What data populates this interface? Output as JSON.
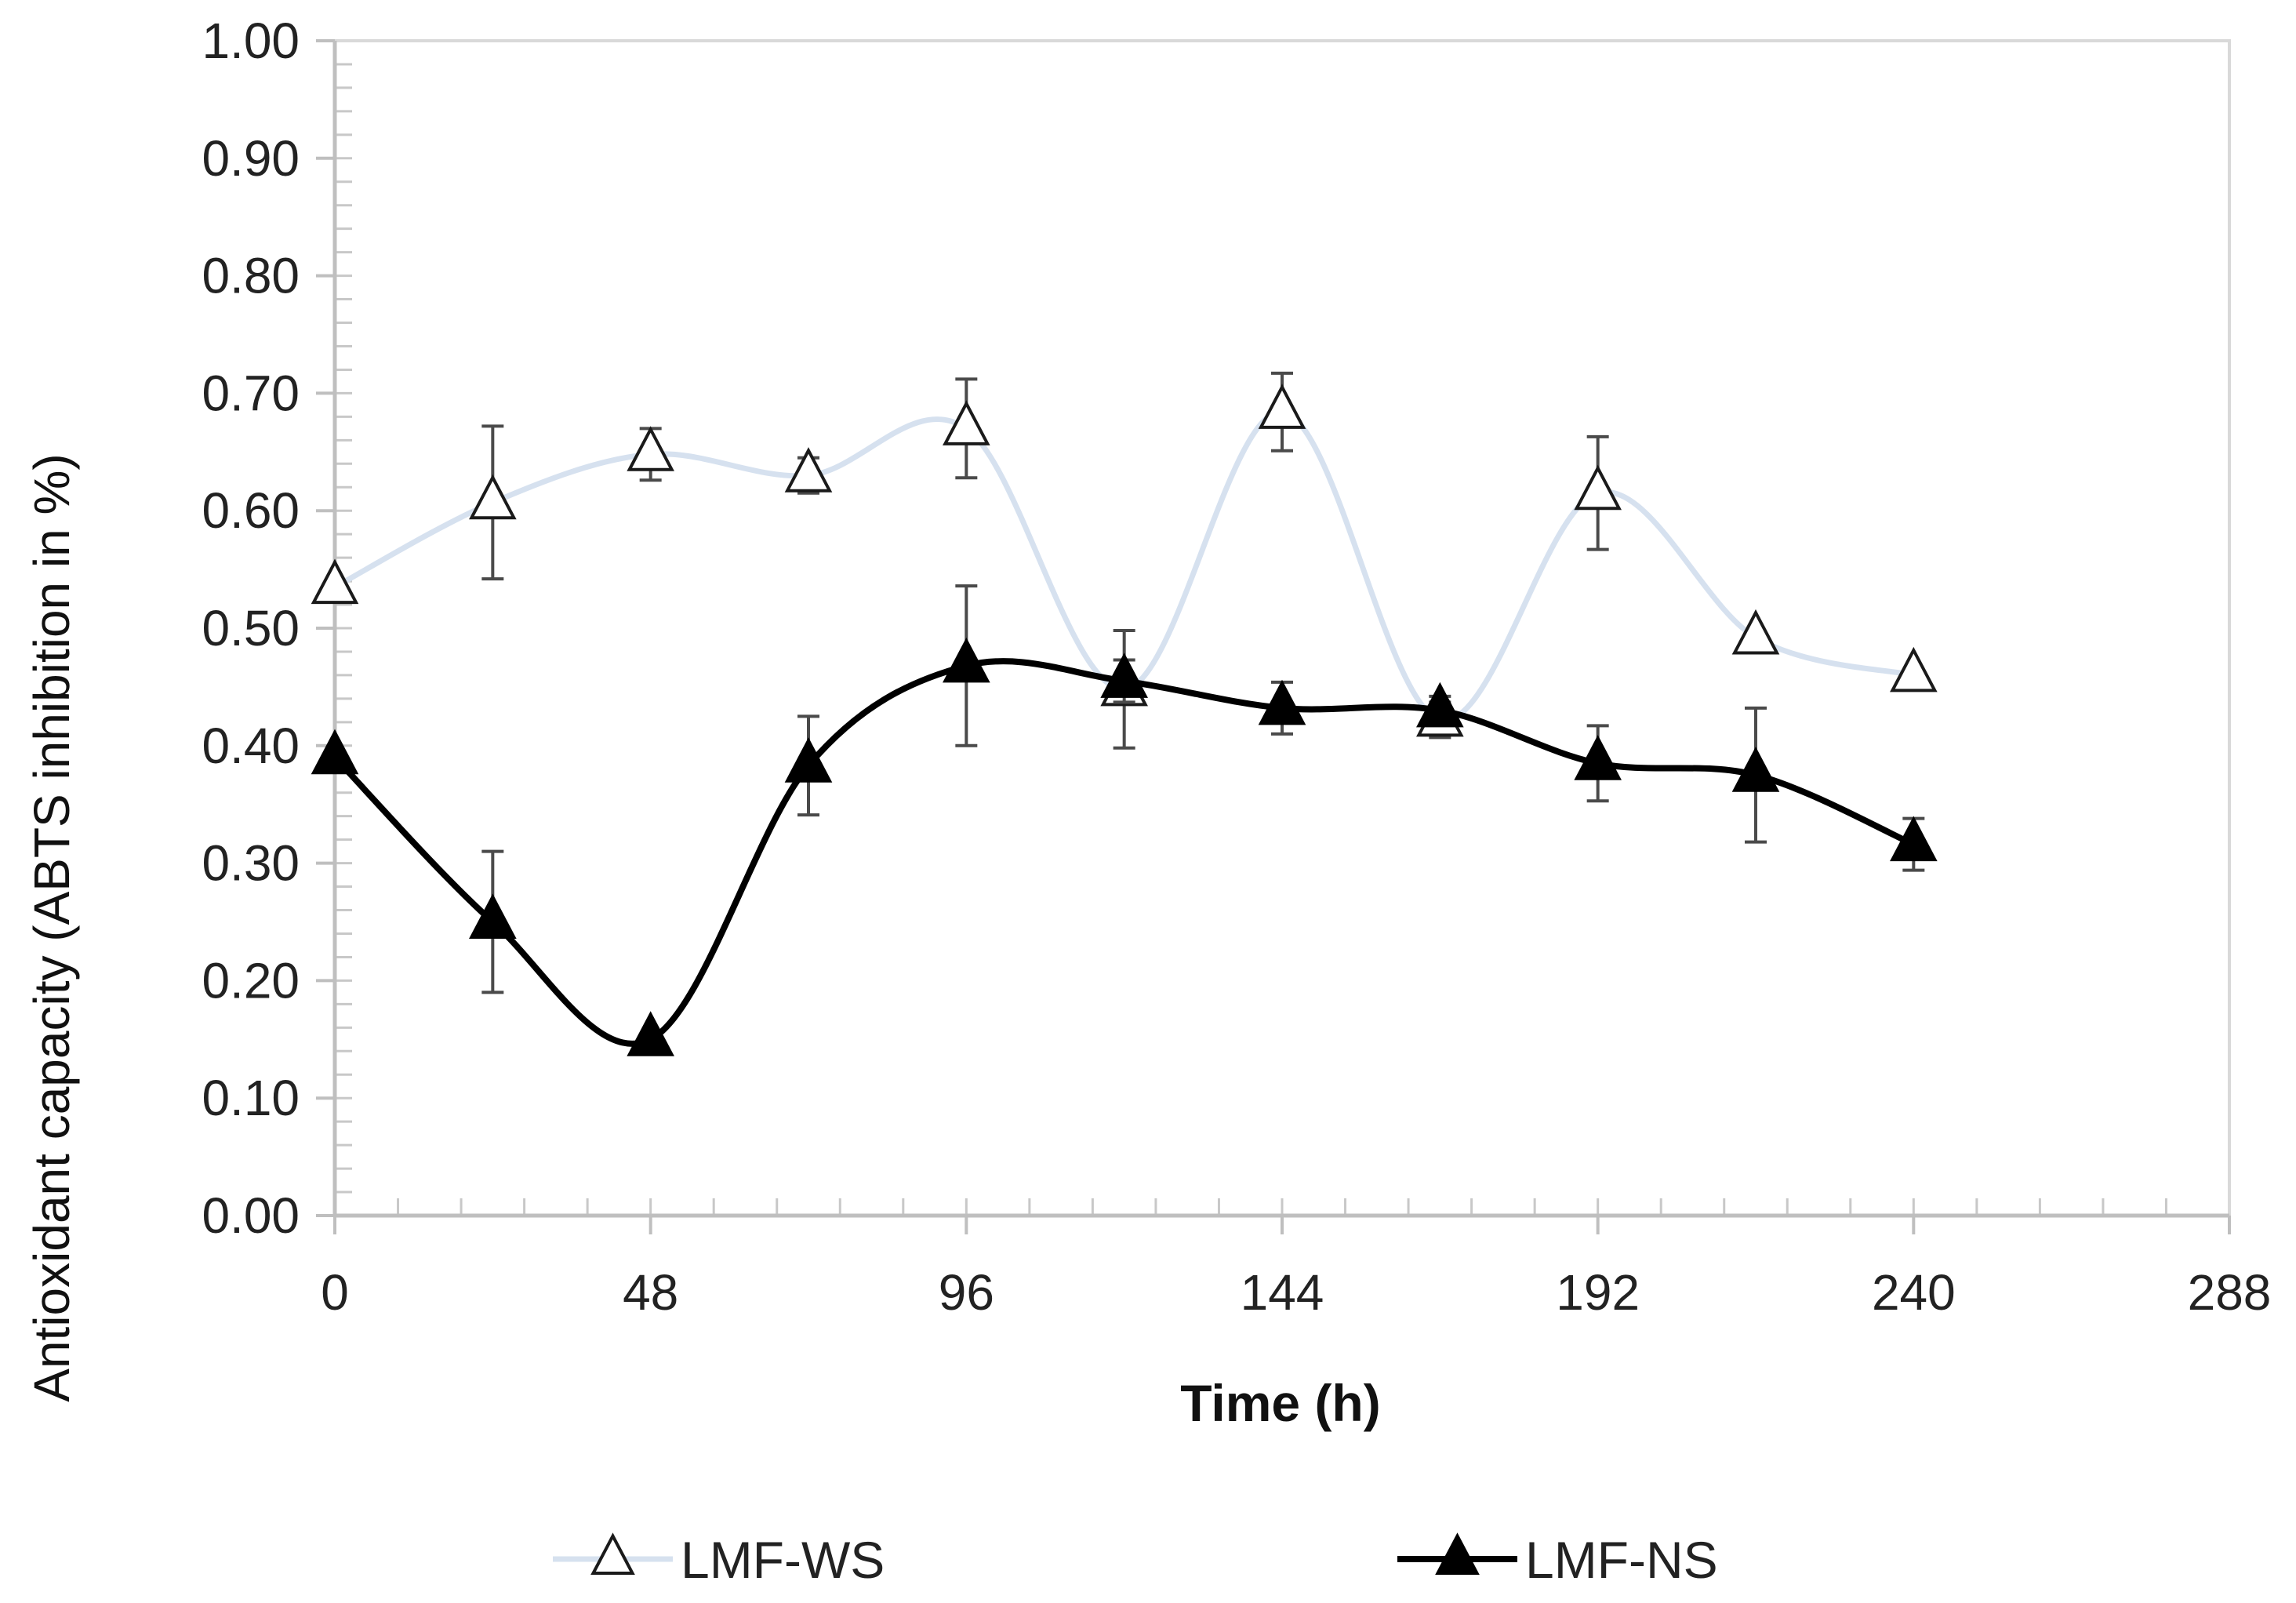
{
  "chart_data": {
    "type": "line",
    "title": "",
    "xlabel": "Time (h)",
    "ylabel": "Antioxidant capacity (ABTS inhibition in %)",
    "xlim": [
      0,
      288
    ],
    "ylim": [
      0,
      1
    ],
    "x_ticks": [
      "0",
      "48",
      "96",
      "144",
      "192",
      "240",
      "288"
    ],
    "x_tick_values": [
      0,
      48,
      96,
      144,
      192,
      240,
      288
    ],
    "y_ticks": [
      "0.00",
      "0.10",
      "0.20",
      "0.30",
      "0.40",
      "0.50",
      "0.60",
      "0.70",
      "0.80",
      "0.90",
      "1.00"
    ],
    "y_tick_values": [
      0,
      0.1,
      0.2,
      0.3,
      0.4,
      0.5,
      0.6,
      0.7,
      0.8,
      0.9,
      1.0
    ],
    "x_minor_step": 9.6,
    "y_minor_step": 0.02,
    "grid": false,
    "legend_position": "bottom",
    "series": [
      {
        "name": "LMF-WS",
        "marker": "open-triangle",
        "line_color": "#d6e1ef",
        "marker_fill": "#ffffff",
        "marker_stroke": "#1a1a1a",
        "x": [
          0,
          24,
          48,
          72,
          96,
          120,
          144,
          168,
          192,
          216,
          240
        ],
        "values": [
          0.535,
          0.607,
          0.648,
          0.63,
          0.67,
          0.448,
          0.684,
          0.422,
          0.615,
          0.492,
          0.46
        ],
        "error": [
          0.0,
          0.065,
          0.022,
          0.015,
          0.042,
          0.05,
          0.033,
          0.015,
          0.048,
          0.0,
          0.0
        ]
      },
      {
        "name": "LMF-NS",
        "marker": "filled-triangle",
        "line_color": "#000000",
        "marker_fill": "#000000",
        "marker_stroke": "#000000",
        "x": [
          0,
          24,
          48,
          72,
          96,
          120,
          144,
          168,
          192,
          216,
          240
        ],
        "values": [
          0.39,
          0.25,
          0.15,
          0.383,
          0.468,
          0.455,
          0.432,
          0.43,
          0.385,
          0.375,
          0.316
        ],
        "error": [
          0.0,
          0.06,
          0.0,
          0.042,
          0.068,
          0.018,
          0.022,
          0.012,
          0.032,
          0.057,
          0.022
        ]
      }
    ]
  }
}
